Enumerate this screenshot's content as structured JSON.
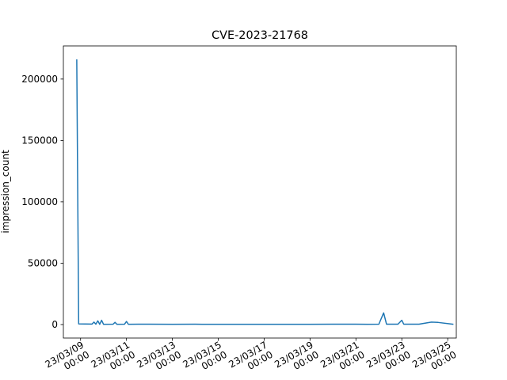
{
  "chart_data": {
    "type": "line",
    "title": "CVE-2023-21768",
    "xlabel": "",
    "ylabel": "impression_count",
    "xlim": [
      "2023-03-08T06:00",
      "2023-03-25T09:00"
    ],
    "ylim": [
      -11000,
      227000
    ],
    "grid": false,
    "legend": "none",
    "line_color": "#1f77b4",
    "x_ticks": [
      {
        "x": "2023-03-09T00:00",
        "line1": "23/03/09",
        "line2": "00:00"
      },
      {
        "x": "2023-03-11T00:00",
        "line1": "23/03/11",
        "line2": "00:00"
      },
      {
        "x": "2023-03-13T00:00",
        "line1": "23/03/13",
        "line2": "00:00"
      },
      {
        "x": "2023-03-15T00:00",
        "line1": "23/03/15",
        "line2": "00:00"
      },
      {
        "x": "2023-03-17T00:00",
        "line1": "23/03/17",
        "line2": "00:00"
      },
      {
        "x": "2023-03-19T00:00",
        "line1": "23/03/19",
        "line2": "00:00"
      },
      {
        "x": "2023-03-21T00:00",
        "line1": "23/03/21",
        "line2": "00:00"
      },
      {
        "x": "2023-03-23T00:00",
        "line1": "23/03/23",
        "line2": "00:00"
      },
      {
        "x": "2023-03-25T00:00",
        "line1": "23/03/25",
        "line2": "00:00"
      }
    ],
    "y_ticks": [
      {
        "y": 0,
        "label": "0"
      },
      {
        "y": 50000,
        "label": "50000"
      },
      {
        "y": 100000,
        "label": "100000"
      },
      {
        "y": 150000,
        "label": "150000"
      },
      {
        "y": 200000,
        "label": "200000"
      }
    ],
    "series": [
      {
        "points": [
          {
            "x": "2023-03-08T20:00",
            "y": 216000
          },
          {
            "x": "2023-03-08T22:00",
            "y": 500
          },
          {
            "x": "2023-03-09T12:00",
            "y": 400
          },
          {
            "x": "2023-03-09T14:00",
            "y": 2000
          },
          {
            "x": "2023-03-09T16:00",
            "y": 300
          },
          {
            "x": "2023-03-09T18:00",
            "y": 3000
          },
          {
            "x": "2023-03-09T20:00",
            "y": 200
          },
          {
            "x": "2023-03-09T22:00",
            "y": 3500
          },
          {
            "x": "2023-03-10T00:00",
            "y": 200
          },
          {
            "x": "2023-03-10T10:00",
            "y": 300
          },
          {
            "x": "2023-03-10T12:00",
            "y": 1800
          },
          {
            "x": "2023-03-10T14:00",
            "y": 200
          },
          {
            "x": "2023-03-10T22:00",
            "y": 300
          },
          {
            "x": "2023-03-11T00:00",
            "y": 2500
          },
          {
            "x": "2023-03-11T02:00",
            "y": 200
          },
          {
            "x": "2023-03-11T12:00",
            "y": 300
          },
          {
            "x": "2023-03-12T00:00",
            "y": 250
          },
          {
            "x": "2023-03-13T00:00",
            "y": 200
          },
          {
            "x": "2023-03-14T00:00",
            "y": 250
          },
          {
            "x": "2023-03-15T00:00",
            "y": 200
          },
          {
            "x": "2023-03-16T00:00",
            "y": 200
          },
          {
            "x": "2023-03-17T00:00",
            "y": 200
          },
          {
            "x": "2023-03-18T00:00",
            "y": 200
          },
          {
            "x": "2023-03-19T00:00",
            "y": 200
          },
          {
            "x": "2023-03-20T00:00",
            "y": 250
          },
          {
            "x": "2023-03-21T00:00",
            "y": 300
          },
          {
            "x": "2023-03-21T12:00",
            "y": 200
          },
          {
            "x": "2023-03-22T00:00",
            "y": 300
          },
          {
            "x": "2023-03-22T05:00",
            "y": 9500
          },
          {
            "x": "2023-03-22T08:00",
            "y": 300
          },
          {
            "x": "2023-03-22T20:00",
            "y": 300
          },
          {
            "x": "2023-03-23T00:00",
            "y": 3500
          },
          {
            "x": "2023-03-23T02:00",
            "y": 300
          },
          {
            "x": "2023-03-23T18:00",
            "y": 300
          },
          {
            "x": "2023-03-24T07:00",
            "y": 2000
          },
          {
            "x": "2023-03-24T14:00",
            "y": 1700
          },
          {
            "x": "2023-03-25T06:00",
            "y": 200
          }
        ]
      }
    ]
  }
}
